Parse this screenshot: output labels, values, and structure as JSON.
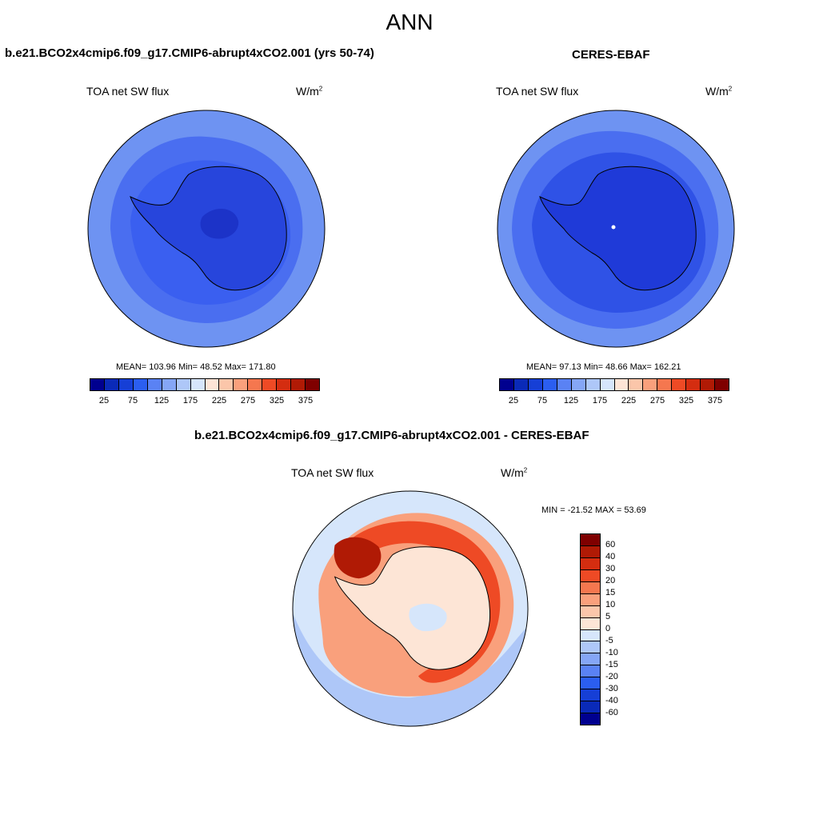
{
  "title": "ANN",
  "panels": [
    {
      "case": "b.e21.BCO2x4cmip6.f09_g17.CMIP6-abrupt4xCO2.001 (yrs 50-74)",
      "variable": "TOA net SW flux",
      "units": "W/m",
      "units_sup": "2",
      "stats": "MEAN= 103.96  Min=  48.52  Max= 171.80"
    },
    {
      "case": "CERES-EBAF",
      "variable": "TOA net SW flux",
      "units": "W/m",
      "units_sup": "2",
      "stats": "MEAN=  97.13  Min=  48.66  Max= 162.21"
    }
  ],
  "diff": {
    "case": "b.e21.BCO2x4cmip6.f09_g17.CMIP6-abrupt4xCO2.001 - CERES-EBAF",
    "variable": "TOA net SW flux",
    "units": "W/m",
    "units_sup": "2",
    "stats": "MIN = -21.52 MAX =  53.69"
  },
  "colors": {
    "abs_scale": [
      "#00008f",
      "#0a2ab8",
      "#163fd6",
      "#2b5ef0",
      "#5a82f4",
      "#85a6f6",
      "#aec7f8",
      "#d6e6fb",
      "#fde5d6",
      "#fbc6aa",
      "#f9a07c",
      "#f5774f",
      "#ee4a25",
      "#d42d10",
      "#b01a05",
      "#7f0000"
    ],
    "diff_scale": [
      "#7f0000",
      "#b01a05",
      "#d42d10",
      "#ee4a25",
      "#f5774f",
      "#f9a07c",
      "#fbc6aa",
      "#fde5d6",
      "#d6e6fb",
      "#aec7f8",
      "#85a6f6",
      "#5a82f4",
      "#2b5ef0",
      "#163fd6",
      "#0a2ab8",
      "#00008f"
    ]
  },
  "chart_data": [
    {
      "type": "heatmap",
      "projection": "south polar stereographic",
      "colorbar_ticks": [
        "25",
        "75",
        "125",
        "175",
        "225",
        "275",
        "325",
        "375"
      ],
      "mean": 103.96,
      "min": 48.52,
      "max": 171.8
    },
    {
      "type": "heatmap",
      "projection": "south polar stereographic",
      "colorbar_ticks": [
        "25",
        "75",
        "125",
        "175",
        "225",
        "275",
        "325",
        "375"
      ],
      "mean": 97.13,
      "min": 48.66,
      "max": 162.21
    },
    {
      "type": "heatmap",
      "projection": "south polar stereographic",
      "colorbar_ticks": [
        "60",
        "40",
        "30",
        "20",
        "15",
        "10",
        "5",
        "0",
        "-5",
        "-10",
        "-15",
        "-20",
        "-30",
        "-40",
        "-60"
      ],
      "min": -21.52,
      "max": 53.69
    }
  ]
}
